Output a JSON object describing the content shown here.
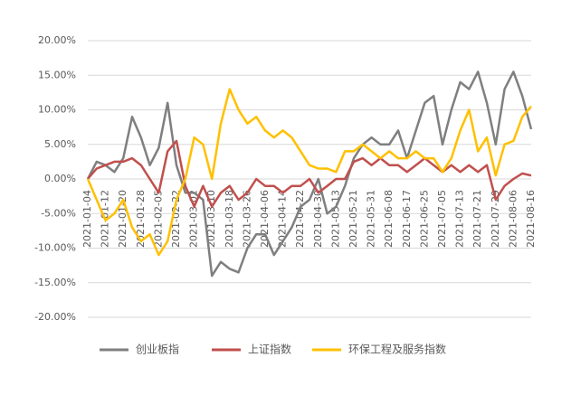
{
  "chart_data": {
    "type": "line",
    "categories": [
      "2021-01-04",
      null,
      "2021-01-12",
      null,
      "2021-01-20",
      null,
      "2021-01-28",
      null,
      "2021-02-05",
      null,
      "2021-02-22",
      null,
      "2021-03-02",
      null,
      "2021-03-10",
      null,
      "2021-03-18",
      null,
      "2021-03-26",
      null,
      "2021-04-06",
      null,
      "2021-04-14",
      null,
      "2021-04-22",
      null,
      "2021-04-30",
      null,
      "2021-05-13",
      null,
      "2021-05-21",
      null,
      "2021-05-31",
      null,
      "2021-06-08",
      null,
      "2021-06-17",
      null,
      "2021-06-25",
      null,
      "2021-07-05",
      null,
      "2021-07-13",
      null,
      "2021-07-21",
      null,
      "2021-07-29",
      null,
      "2021-08-06",
      null,
      "2021-08-16"
    ],
    "series": [
      {
        "name": "创业板指",
        "color": "#7f7f7f",
        "values": [
          0,
          2.5,
          2,
          1,
          3,
          9,
          6,
          2,
          4.5,
          11,
          2,
          -2,
          -2,
          -3,
          -14,
          -12,
          -13,
          -13.5,
          -10,
          -8,
          -8,
          -11,
          -9,
          -7,
          -4,
          -3,
          0,
          -5,
          -4,
          -1,
          3,
          5,
          6,
          5,
          5,
          7,
          3,
          7,
          11,
          12,
          5,
          10,
          14,
          13,
          15.5,
          11,
          5,
          13,
          15.5,
          12,
          7.2
        ]
      },
      {
        "name": "上证指数",
        "color": "#c0504d",
        "values": [
          0,
          1.5,
          2,
          2.5,
          2.5,
          3,
          2,
          0,
          -2,
          4,
          5.5,
          -1,
          -4,
          -1,
          -4,
          -2,
          -1,
          -3,
          -2,
          0,
          -1,
          -1,
          -2,
          -1,
          -1,
          0,
          -2,
          -1,
          0,
          0,
          2.5,
          3,
          2,
          3,
          2,
          2,
          1,
          2,
          3,
          2,
          1,
          2,
          1,
          2,
          1,
          2,
          -3,
          -1,
          0,
          0.8,
          0.5
        ]
      },
      {
        "name": "环保工程及服务指数",
        "color": "#ffc000",
        "values": [
          0,
          -3,
          -6,
          -5,
          -3,
          -7,
          -9,
          -8,
          -11,
          -9,
          -3,
          0,
          6,
          5,
          0,
          8,
          13,
          10,
          8,
          9,
          7,
          6,
          7,
          6,
          4,
          2,
          1.5,
          1.5,
          1,
          4,
          4,
          5,
          4,
          3,
          4,
          3,
          3,
          4,
          3,
          3,
          1,
          3,
          7,
          10,
          4,
          6,
          0.5,
          5,
          5.5,
          9,
          10.5
        ]
      }
    ],
    "ylim": [
      -20,
      20
    ],
    "yticks": [
      {
        "value": -20,
        "label": "-20.00%"
      },
      {
        "value": -15,
        "label": "-15.00%"
      },
      {
        "value": -10,
        "label": "-10.00%"
      },
      {
        "value": -5,
        "label": "-5.00%"
      },
      {
        "value": 0,
        "label": "0.00%"
      },
      {
        "value": 5,
        "label": "5.00%"
      },
      {
        "value": 10,
        "label": "10.00%"
      },
      {
        "value": 15,
        "label": "15.00%"
      },
      {
        "value": 20,
        "label": "20.00%"
      }
    ],
    "grid": true,
    "legend": "bottom"
  }
}
